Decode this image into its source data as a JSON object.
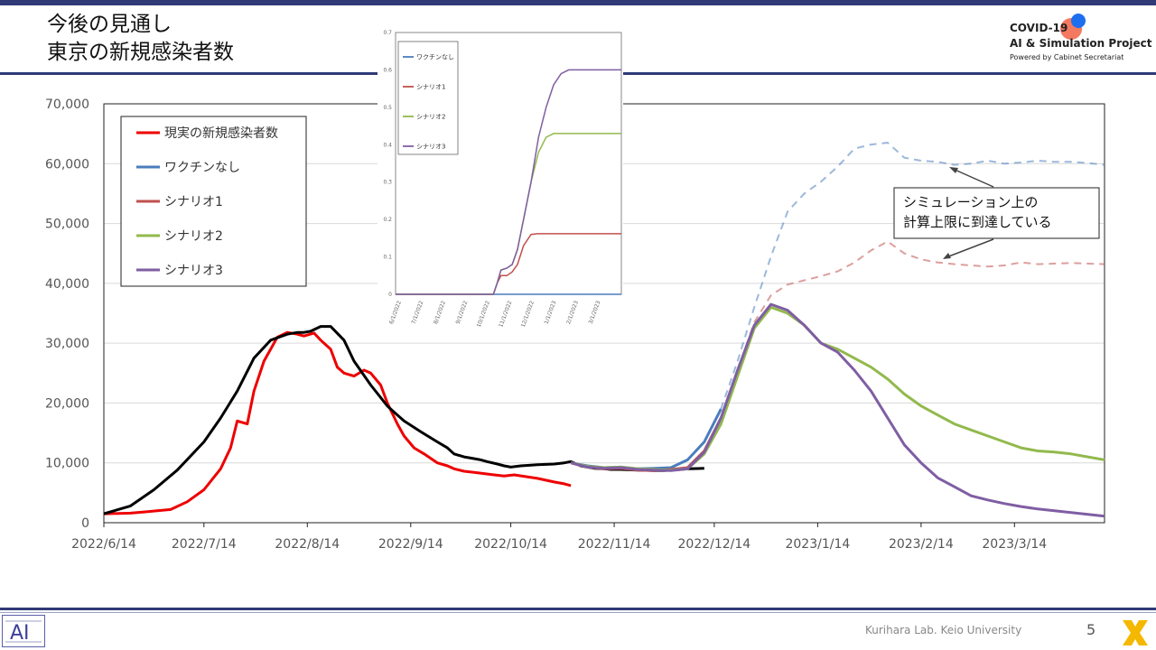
{
  "slide": {
    "title_line1": "今後の見通し",
    "title_line2": "東京の新規感染者数",
    "logo_line1": "COVID-19",
    "logo_line2": "AI & Simulation Project",
    "logo_line3": "Powered by Cabinet Secretariat",
    "footer": "Kurihara Lab. Keio University",
    "page_number": "5",
    "colors": {
      "accent": "#2f3a77",
      "real": "#ee0000",
      "observed": "#000000",
      "no_vaccine": "#4a7dbd",
      "scenario1": "#c0504d",
      "scenario2": "#92b94d",
      "scenario3": "#7f5ea3"
    }
  },
  "chart_data": [
    {
      "type": "line",
      "ylim": [
        0,
        70000
      ],
      "yticks": [
        "0",
        "10,000",
        "20,000",
        "30,000",
        "40,000",
        "50,000",
        "60,000",
        "70,000"
      ],
      "xticks": [
        "2022/6/14",
        "2022/7/14",
        "2022/8/14",
        "2022/9/14",
        "2022/10/14",
        "2022/11/14",
        "2022/12/14",
        "2023/1/14",
        "2023/2/14",
        "2023/3/14"
      ],
      "xlim_days": [
        0,
        300
      ],
      "legend": [
        "現実の新規感染者数",
        "ワクチンなし",
        "シナリオ1",
        "シナリオ2",
        "シナリオ3"
      ],
      "annotation": [
        "シミュレーション上の",
        "計算上限に到達している"
      ],
      "series": [
        {
          "name": "現実の新規感染者数",
          "color": "#ee0000",
          "x": [
            0,
            8,
            12,
            20,
            25,
            30,
            35,
            38,
            40,
            43,
            45,
            48,
            52,
            55,
            58,
            60,
            63,
            65,
            68,
            70,
            72,
            75,
            78,
            80,
            83,
            85,
            88,
            90,
            93,
            96,
            100,
            103,
            105,
            108,
            111,
            114,
            117,
            120,
            123,
            130,
            135,
            138,
            140
          ],
          "y": [
            1500,
            1600,
            1800,
            2200,
            3500,
            5500,
            9000,
            12500,
            17000,
            16500,
            22000,
            27000,
            31000,
            31800,
            31500,
            31200,
            31700,
            30500,
            29000,
            26000,
            25000,
            24500,
            25500,
            25000,
            23000,
            20000,
            16500,
            14500,
            12500,
            11500,
            10000,
            9500,
            9000,
            8600,
            8400,
            8200,
            8000,
            7800,
            8000,
            7400,
            6800,
            6500,
            6200
          ]
        },
        {
          "name": "observed",
          "color": "#000000",
          "x": [
            0,
            8,
            15,
            22,
            30,
            35,
            40,
            45,
            50,
            55,
            58,
            60,
            62,
            65,
            68,
            72,
            75,
            80,
            85,
            88,
            90,
            95,
            100,
            103,
            105,
            108,
            110,
            113,
            115,
            118,
            120,
            122,
            125,
            130,
            135,
            138,
            140,
            143,
            145,
            147,
            150,
            152,
            155,
            160,
            165,
            168,
            170,
            173,
            175,
            178,
            180
          ],
          "y": [
            1500,
            2800,
            5500,
            8800,
            13500,
            17500,
            22000,
            27500,
            30500,
            31500,
            31800,
            31800,
            32000,
            32800,
            32800,
            30500,
            27000,
            23000,
            19500,
            18000,
            17000,
            15200,
            13500,
            12500,
            11500,
            11000,
            10800,
            10500,
            10200,
            9800,
            9500,
            9300,
            9500,
            9700,
            9800,
            10000,
            10200,
            9500,
            9300,
            9100,
            9000,
            8900,
            8900,
            8800,
            8700,
            8700,
            8800,
            8900,
            9000,
            9050,
            9100
          ]
        },
        {
          "name": "ワクチンなし",
          "color": "#4a7dbd",
          "x": [
            140,
            145,
            150,
            155,
            160,
            165,
            170,
            175,
            180,
            185,
            190,
            195,
            200,
            205,
            210,
            215,
            220,
            225,
            230,
            235,
            240,
            245,
            250,
            255,
            260,
            265,
            270,
            275,
            280,
            285,
            290,
            295,
            300
          ],
          "y": [
            10000,
            9500,
            9200,
            9300,
            9000,
            9100,
            9200,
            10500,
            13500,
            19000,
            27000,
            36000,
            44500,
            52000,
            55000,
            57000,
            59500,
            62500,
            63200,
            63500,
            61000,
            60500,
            60300,
            59800,
            60000,
            60500,
            60000,
            60200,
            60500,
            60300,
            60300,
            60100,
            59800
          ]
        },
        {
          "name": "シナリオ1",
          "color": "#c0504d",
          "x": [
            140,
            145,
            150,
            155,
            160,
            165,
            170,
            175,
            180,
            185,
            190,
            195,
            200,
            205,
            210,
            215,
            220,
            225,
            230,
            235,
            240,
            245,
            250,
            255,
            260,
            265,
            270,
            275,
            280,
            285,
            290,
            295,
            300
          ],
          "y": [
            10000,
            9300,
            9000,
            9100,
            8800,
            8700,
            8900,
            9200,
            12000,
            17500,
            25500,
            33500,
            38000,
            39800,
            40500,
            41200,
            42000,
            43500,
            45500,
            47000,
            45000,
            44000,
            43500,
            43200,
            43000,
            42800,
            43000,
            43500,
            43200,
            43300,
            43400,
            43300,
            43200
          ]
        },
        {
          "name": "シナリオ2",
          "color": "#92b94d",
          "x": [
            140,
            145,
            150,
            155,
            160,
            165,
            170,
            175,
            180,
            185,
            190,
            195,
            200,
            205,
            210,
            215,
            220,
            225,
            230,
            235,
            240,
            245,
            250,
            255,
            260,
            265,
            270,
            275,
            280,
            285,
            290,
            295,
            300
          ],
          "y": [
            10000,
            9400,
            9200,
            9300,
            9000,
            8900,
            8800,
            9000,
            11500,
            16500,
            24500,
            32500,
            36000,
            35000,
            33000,
            30000,
            29000,
            27500,
            26000,
            24000,
            21500,
            19500,
            18000,
            16500,
            15500,
            14500,
            13500,
            12500,
            12000,
            11800,
            11500,
            11000,
            10500
          ]
        },
        {
          "name": "シナリオ3",
          "color": "#7f5ea3",
          "x": [
            140,
            145,
            150,
            155,
            160,
            165,
            170,
            175,
            180,
            185,
            190,
            195,
            200,
            205,
            210,
            215,
            220,
            225,
            230,
            235,
            240,
            245,
            250,
            255,
            260,
            265,
            270,
            275,
            280,
            285,
            290,
            295,
            300
          ],
          "y": [
            10000,
            9300,
            9100,
            9200,
            8900,
            8800,
            8700,
            9000,
            11800,
            17500,
            25500,
            33000,
            36500,
            35500,
            33000,
            30000,
            28500,
            25500,
            22000,
            17500,
            13000,
            10000,
            7500,
            6000,
            4500,
            3800,
            3200,
            2700,
            2300,
            2000,
            1700,
            1400,
            1100
          ]
        }
      ]
    },
    {
      "type": "line",
      "ylim": [
        0,
        0.7
      ],
      "yticks": [
        "0",
        "0.1",
        "0.2",
        "0.3",
        "0.4",
        "0.5",
        "0.6",
        "0.7"
      ],
      "xticks": [
        "6/1/2022",
        "7/1/2022",
        "8/1/2022",
        "9/1/2022",
        "10/1/2022",
        "11/1/2022",
        "12/1/2022",
        "1/1/2023",
        "2/1/2023",
        "3/1/2023"
      ],
      "legend": [
        "ワクチンなし",
        "シナリオ1",
        "シナリオ2",
        "シナリオ3"
      ],
      "series": [
        {
          "name": "ワクチンなし",
          "color": "#4a7dbd",
          "x": [
            0,
            300
          ],
          "y": [
            0,
            0
          ]
        },
        {
          "name": "シナリオ1",
          "color": "#c0504d",
          "x": [
            0,
            120,
            130,
            135,
            140,
            148,
            155,
            162,
            170,
            180,
            188,
            195,
            300
          ],
          "y": [
            0,
            0,
            0,
            0.03,
            0.05,
            0.05,
            0.06,
            0.08,
            0.13,
            0.16,
            0.162,
            0.162,
            0.162
          ]
        },
        {
          "name": "シナリオ2",
          "color": "#92b94d",
          "x": [
            0,
            120,
            130,
            135,
            140,
            148,
            155,
            162,
            170,
            180,
            190,
            200,
            210,
            220,
            230,
            300
          ],
          "y": [
            0,
            0,
            0,
            0.03,
            0.065,
            0.07,
            0.08,
            0.12,
            0.2,
            0.3,
            0.38,
            0.42,
            0.43,
            0.43,
            0.43,
            0.43
          ]
        },
        {
          "name": "シナリオ3",
          "color": "#7f5ea3",
          "x": [
            0,
            120,
            130,
            135,
            140,
            148,
            155,
            162,
            170,
            180,
            190,
            200,
            210,
            220,
            230,
            240,
            250,
            300
          ],
          "y": [
            0,
            0,
            0,
            0.03,
            0.065,
            0.07,
            0.08,
            0.12,
            0.2,
            0.3,
            0.42,
            0.5,
            0.56,
            0.59,
            0.6,
            0.6,
            0.6,
            0.6
          ]
        }
      ]
    }
  ]
}
